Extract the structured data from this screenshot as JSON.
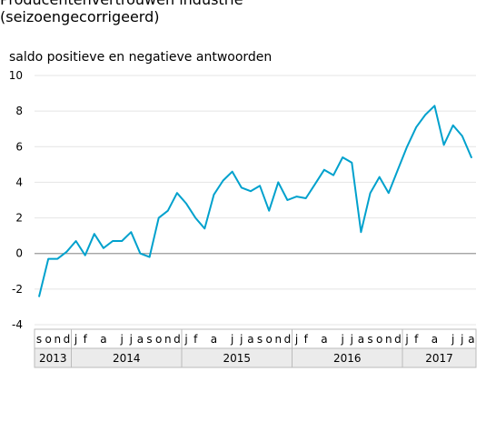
{
  "title_line1": "Producentenvertrouwen industrie",
  "title_line2": "(seizoengecorrigeerd)",
  "ylabel": "saldo positieve en negatieve antwoorden",
  "chart_data": {
    "type": "line",
    "title": "Producentenvertrouwen industrie (seizoengecorrigeerd)",
    "ylabel": "saldo positieve en negatieve antwoorden",
    "ylim": [
      -4,
      10
    ],
    "yticks": [
      -4,
      -2,
      0,
      2,
      4,
      6,
      8,
      10
    ],
    "grid": true,
    "color": "#00a1cd",
    "month_labels": [
      "s",
      "o",
      "n",
      "d",
      "j",
      "f",
      "",
      "a",
      "",
      "j",
      "j",
      "a",
      "s",
      "o",
      "n",
      "d",
      "j",
      "f",
      "",
      "a",
      "",
      "j",
      "j",
      "a",
      "s",
      "o",
      "n",
      "d",
      "j",
      "f",
      "",
      "a",
      "",
      "j",
      "j",
      "a",
      "s",
      "o",
      "n",
      "d",
      "j",
      "f",
      "",
      "a",
      "",
      "j",
      "j",
      "a"
    ],
    "year_groups": [
      {
        "label": "2013",
        "start": 0,
        "end": 3
      },
      {
        "label": "2014",
        "start": 4,
        "end": 15
      },
      {
        "label": "2015",
        "start": 16,
        "end": 27
      },
      {
        "label": "2016",
        "start": 28,
        "end": 39
      },
      {
        "label": "2017",
        "start": 40,
        "end": 47
      }
    ],
    "x": [
      "2013-09",
      "2013-10",
      "2013-11",
      "2013-12",
      "2014-01",
      "2014-02",
      "2014-03",
      "2014-04",
      "2014-05",
      "2014-06",
      "2014-07",
      "2014-08",
      "2014-09",
      "2014-10",
      "2014-11",
      "2014-12",
      "2015-01",
      "2015-02",
      "2015-03",
      "2015-04",
      "2015-05",
      "2015-06",
      "2015-07",
      "2015-08",
      "2015-09",
      "2015-10",
      "2015-11",
      "2015-12",
      "2016-01",
      "2016-02",
      "2016-03",
      "2016-04",
      "2016-05",
      "2016-06",
      "2016-07",
      "2016-08",
      "2016-09",
      "2016-10",
      "2016-11",
      "2016-12",
      "2017-01",
      "2017-02",
      "2017-03",
      "2017-04",
      "2017-05",
      "2017-06",
      "2017-07",
      "2017-08"
    ],
    "values": [
      -2.4,
      -0.3,
      -0.3,
      0.1,
      0.7,
      -0.1,
      1.1,
      0.3,
      0.7,
      0.7,
      1.2,
      0.0,
      -0.2,
      2.0,
      2.4,
      3.4,
      2.8,
      2.0,
      1.4,
      3.3,
      4.1,
      4.6,
      3.7,
      3.5,
      3.8,
      2.4,
      4.0,
      3.0,
      3.2,
      3.1,
      3.9,
      4.7,
      4.4,
      5.4,
      5.1,
      1.2,
      3.4,
      4.3,
      3.4,
      4.7,
      6.0,
      7.1,
      7.8,
      8.3,
      6.1,
      7.2,
      6.6,
      5.4
    ]
  }
}
